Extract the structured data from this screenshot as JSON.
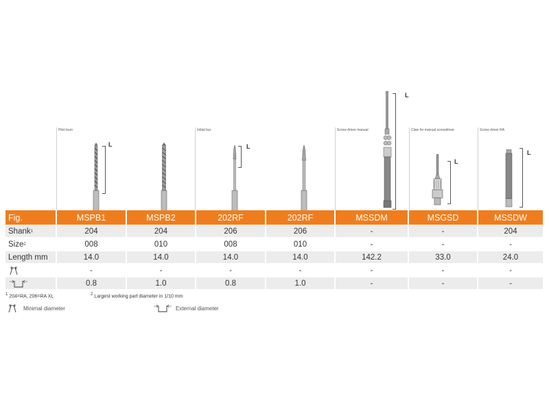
{
  "groups": [
    {
      "label": "Pilot burs"
    },
    {
      "label": "Initial bur"
    },
    {
      "label": "Screw driver manual"
    },
    {
      "label": "Claw for manual screwdriver"
    },
    {
      "label": "Screw driver RA"
    }
  ],
  "length_marker": "L",
  "table": {
    "header_label": "Fig.",
    "columns": [
      "MSPB1",
      "MSPB2",
      "202RF",
      "202RF",
      "MSSDM",
      "MSGSD",
      "MSSDW"
    ],
    "rows": [
      {
        "label": "Shank",
        "sup": "1",
        "values": [
          "204",
          "204",
          "206",
          "206",
          "-",
          "-",
          "204"
        ]
      },
      {
        "label": "Size",
        "sup": "2",
        "values": [
          "008",
          "010",
          "008",
          "010",
          "-",
          "-",
          "-"
        ]
      },
      {
        "label": "Length mm",
        "sup": "",
        "values": [
          "14.0",
          "14.0",
          "14.0",
          "14.0",
          "142.2",
          "33.0",
          "24.0"
        ]
      },
      {
        "label": "",
        "sup": "",
        "icon": "minimal-diameter-icon",
        "values": [
          "-",
          "-",
          "-",
          "-",
          "-",
          "-",
          "-"
        ]
      },
      {
        "label": "",
        "sup": "",
        "icon": "external-diameter-icon",
        "values": [
          "0.8",
          "1.0",
          "0.8",
          "1.0",
          "-",
          "-",
          "-"
        ]
      }
    ]
  },
  "footnotes": {
    "note1_sup": "1",
    "note1": "204=RA, 206=RA XL",
    "note2_sup": "2",
    "note2": "Largest working part diameter in 1/10 mm"
  },
  "legend": {
    "minimal": "Minimal diameter",
    "external": "External diameter"
  },
  "colors": {
    "header_bg": "#f07d1d",
    "header_text": "#ffffff",
    "row_shade": "#ececec"
  }
}
